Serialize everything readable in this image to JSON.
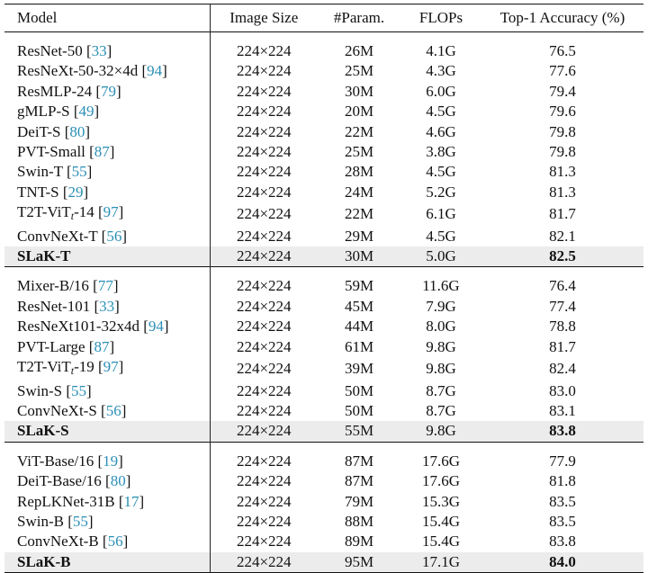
{
  "headers": {
    "model": "Model",
    "size": "Image Size",
    "param": "#Param.",
    "flops": "FLOPs",
    "acc": "Top-1 Accuracy (%)"
  },
  "groups": [
    {
      "rows": [
        {
          "pre": "ResNet-50 [",
          "cite": "33",
          "post": "]",
          "size": "224×224",
          "param": "26M",
          "flops": "4.1G",
          "acc": "76.5"
        },
        {
          "pre": "ResNeXt-50-32×4d [",
          "cite": "94",
          "post": "]",
          "size": "224×224",
          "param": "25M",
          "flops": "4.3G",
          "acc": "77.6"
        },
        {
          "pre": "ResMLP-24 [",
          "cite": "79",
          "post": "]",
          "size": "224×224",
          "param": "30M",
          "flops": "6.0G",
          "acc": "79.4"
        },
        {
          "pre": "gMLP-S [",
          "cite": "49",
          "post": "]",
          "size": "224×224",
          "param": "20M",
          "flops": "4.5G",
          "acc": "79.6"
        },
        {
          "pre": "DeiT-S [",
          "cite": "80",
          "post": "]",
          "size": "224×224",
          "param": "22M",
          "flops": "4.6G",
          "acc": "79.8"
        },
        {
          "pre": "PVT-Small [",
          "cite": "87",
          "post": "]",
          "size": "224×224",
          "param": "25M",
          "flops": "3.8G",
          "acc": "79.8"
        },
        {
          "pre": "Swin-T [",
          "cite": "55",
          "post": "]",
          "size": "224×224",
          "param": "28M",
          "flops": "4.5G",
          "acc": "81.3"
        },
        {
          "pre": "TNT-S [",
          "cite": "29",
          "post": "]",
          "size": "224×224",
          "param": "24M",
          "flops": "5.2G",
          "acc": "81.3"
        },
        {
          "pre": "T2T-ViT",
          "subscript": "t",
          "mid": "-14 [",
          "cite": "97",
          "post": "]",
          "size": "224×224",
          "param": "22M",
          "flops": "6.1G",
          "acc": "81.7"
        },
        {
          "pre": "ConvNeXt-T [",
          "cite": "56",
          "post": "]",
          "size": "224×224",
          "param": "29M",
          "flops": "4.5G",
          "acc": "82.1"
        }
      ],
      "ours": {
        "name": "SLaK-T",
        "size": "224×224",
        "param": "30M",
        "flops": "5.0G",
        "acc": "82.5"
      }
    },
    {
      "rows": [
        {
          "pre": "Mixer-B/16 [",
          "cite": "77",
          "post": "]",
          "size": "224×224",
          "param": "59M",
          "flops": "11.6G",
          "acc": "76.4"
        },
        {
          "pre": "ResNet-101 [",
          "cite": "33",
          "post": "]",
          "size": "224×224",
          "param": "45M",
          "flops": "7.9G",
          "acc": "77.4"
        },
        {
          "pre": "ResNeXt101-32x4d [",
          "cite": "94",
          "post": "]",
          "size": "224×224",
          "param": "44M",
          "flops": "8.0G",
          "acc": "78.8"
        },
        {
          "pre": "PVT-Large [",
          "cite": "87",
          "post": "]",
          "size": "224×224",
          "param": "61M",
          "flops": "9.8G",
          "acc": "81.7"
        },
        {
          "pre": "T2T-ViT",
          "subscript": "t",
          "mid": "-19 [",
          "cite": "97",
          "post": "]",
          "size": "224×224",
          "param": "39M",
          "flops": "9.8G",
          "acc": "82.4"
        },
        {
          "pre": "Swin-S [",
          "cite": "55",
          "post": "]",
          "size": "224×224",
          "param": "50M",
          "flops": "8.7G",
          "acc": "83.0"
        },
        {
          "pre": "ConvNeXt-S [",
          "cite": "56",
          "post": "]",
          "size": "224×224",
          "param": "50M",
          "flops": "8.7G",
          "acc": "83.1"
        }
      ],
      "ours": {
        "name": "SLaK-S",
        "size": "224×224",
        "param": "55M",
        "flops": "9.8G",
        "acc": "83.8"
      }
    },
    {
      "rows": [
        {
          "pre": "ViT-Base/16 [",
          "cite": "19",
          "post": "]",
          "size": "224×224",
          "param": "87M",
          "flops": "17.6G",
          "acc": "77.9"
        },
        {
          "pre": "DeiT-Base/16 [",
          "cite": "80",
          "post": "]",
          "size": "224×224",
          "param": "87M",
          "flops": "17.6G",
          "acc": "81.8"
        },
        {
          "pre": "RepLKNet-31B [",
          "cite": "17",
          "post": "]",
          "size": "224×224",
          "param": "79M",
          "flops": "15.3G",
          "acc": "83.5"
        },
        {
          "pre": "Swin-B [",
          "cite": "55",
          "post": "]",
          "size": "224×224",
          "param": "88M",
          "flops": "15.4G",
          "acc": "83.5"
        },
        {
          "pre": "ConvNeXt-B [",
          "cite": "56",
          "post": "]",
          "size": "224×224",
          "param": "89M",
          "flops": "15.4G",
          "acc": "83.8"
        }
      ],
      "ours": {
        "name": "SLaK-B",
        "size": "224×224",
        "param": "95M",
        "flops": "17.1G",
        "acc": "84.0"
      }
    }
  ]
}
